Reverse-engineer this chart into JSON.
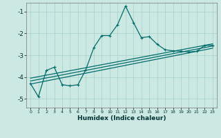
{
  "xlabel": "Humidex (Indice chaleur)",
  "background_color": "#cce8e3",
  "grid_color": "#aad4cc",
  "line_color": "#006b6b",
  "xlim": [
    -0.5,
    23.5
  ],
  "ylim": [
    -5.4,
    -0.6
  ],
  "yticks": [
    -5,
    -4,
    -3,
    -2,
    -1
  ],
  "xticks": [
    0,
    1,
    2,
    3,
    4,
    5,
    6,
    7,
    8,
    9,
    10,
    11,
    12,
    13,
    14,
    15,
    16,
    17,
    18,
    19,
    20,
    21,
    22,
    23
  ],
  "line1_x": [
    0,
    1,
    2,
    3,
    4,
    5,
    6,
    7,
    8,
    9,
    10,
    11,
    12,
    13,
    14,
    15,
    16,
    17,
    18,
    19,
    20,
    21,
    22,
    23
  ],
  "line1_y": [
    -4.3,
    -4.9,
    -3.7,
    -3.55,
    -4.35,
    -4.4,
    -4.35,
    -3.65,
    -2.65,
    -2.1,
    -2.1,
    -1.6,
    -0.75,
    -1.5,
    -2.2,
    -2.15,
    -2.5,
    -2.75,
    -2.8,
    -2.82,
    -2.85,
    -2.82,
    -2.55,
    -2.55
  ],
  "trend1_x": [
    0,
    23
  ],
  "trend1_y": [
    -4.05,
    -2.48
  ],
  "trend2_x": [
    0,
    23
  ],
  "trend2_y": [
    -4.18,
    -2.58
  ],
  "trend3_x": [
    0,
    23
  ],
  "trend3_y": [
    -4.32,
    -2.68
  ],
  "marker_style": "*",
  "lw": 0.9,
  "ms": 2.8
}
